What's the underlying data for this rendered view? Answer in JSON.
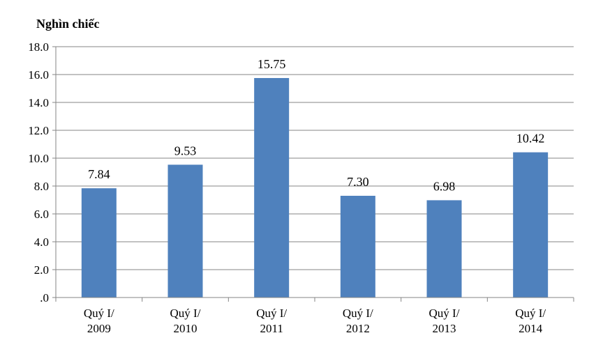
{
  "chart_data": {
    "type": "bar",
    "ylabel": "Nghìn chiếc",
    "xlabel": "",
    "title": "",
    "categories": [
      [
        "Quý I/",
        "2009"
      ],
      [
        "Quý I/",
        "2010"
      ],
      [
        "Quý I/",
        "2011"
      ],
      [
        "Quý I/",
        "2012"
      ],
      [
        "Quý I/",
        "2013"
      ],
      [
        "Quý I/",
        "2014"
      ]
    ],
    "values": [
      7.84,
      9.53,
      15.75,
      7.3,
      6.98,
      10.42
    ],
    "value_labels": [
      "7.84",
      "9.53",
      "15.75",
      "7.30",
      "6.98",
      "10.42"
    ],
    "ylim": [
      0,
      18
    ],
    "yticks": [
      0,
      2,
      4,
      6,
      8,
      10,
      12,
      14,
      16,
      18
    ],
    "ytick_labels": [
      ".0",
      "2.0",
      "4.0",
      "6.0",
      "8.0",
      "10.0",
      "12.0",
      "14.0",
      "16.0",
      "18.0"
    ],
    "grid": true,
    "legend": "none",
    "bar_color": "#4F81BD",
    "grid_color": "#868686"
  }
}
